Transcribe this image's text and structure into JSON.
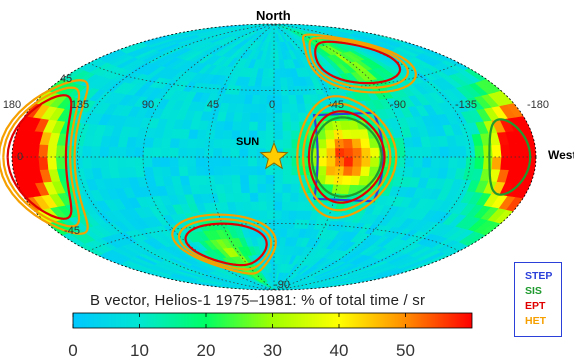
{
  "chart_data": {
    "type": "heatmap",
    "projection": "aitoff",
    "title": "",
    "axis_labels": {
      "top": "North",
      "right": "West"
    },
    "longitude_ticks": [
      "180",
      "135",
      "90",
      "45",
      "0",
      "-45",
      "-90",
      "-135",
      "-180"
    ],
    "longitude_values": [
      180,
      135,
      90,
      45,
      0,
      -45,
      -90,
      -135,
      -180
    ],
    "latitude_ticks": [
      "45",
      "0",
      "-45",
      "-90"
    ],
    "latitude_values": [
      45,
      0,
      -45,
      -90
    ],
    "grid": true,
    "sun_label": "SUN",
    "sun_marker": {
      "lon": 0,
      "lat": 0,
      "color": "#ffcc00"
    },
    "colorbar": {
      "title": "B vector, Helios-1 1975–1981: % of total time / sr",
      "ticks": [
        "0",
        "10",
        "20",
        "30",
        "40",
        "50"
      ],
      "tick_values": [
        0,
        10,
        20,
        30,
        40,
        50
      ],
      "range": [
        0,
        60
      ],
      "colors": [
        "#00c8ff",
        "#00e6d2",
        "#00ff64",
        "#a0ff00",
        "#ffff00",
        "#ff8c00",
        "#ff0000"
      ]
    },
    "hotspots": [
      {
        "lon": 180,
        "lat": 0,
        "value": 48
      },
      {
        "lon": -180,
        "lat": 0,
        "value": 48
      },
      {
        "lon": -50,
        "lat": 0,
        "value": 52
      },
      {
        "lon": -90,
        "lat": 62,
        "value": 22
      },
      {
        "lon": 55,
        "lat": -65,
        "value": 22
      },
      {
        "lon": -170,
        "lat": 0,
        "value": 12
      }
    ],
    "legend": [
      {
        "name": "STEP",
        "color": "#2b3fd9"
      },
      {
        "name": "SIS",
        "color": "#1f9a2e"
      },
      {
        "name": "EPT",
        "color": "#e00000"
      },
      {
        "name": "HET",
        "color": "#f5a000"
      }
    ],
    "instrument_fov": [
      {
        "instrument": "STEP",
        "shape": "rect",
        "lon_range": [
          -30,
          -75
        ],
        "lat_range": [
          -28,
          28
        ],
        "color": "#2b3fd9"
      },
      {
        "instrument": "SIS",
        "shape": "ellipse",
        "lon": -50,
        "lat": 0,
        "rlon": 24,
        "rlat": 26,
        "color": "#1f9a2e"
      },
      {
        "instrument": "SIS",
        "shape": "ellipse",
        "lon": -162,
        "lat": 0,
        "rlon": 14,
        "rlat": 18,
        "color": "#1f9a2e"
      },
      {
        "instrument": "EPT",
        "shape": "ellipse",
        "lon": -50,
        "lat": 0,
        "rlon": 26,
        "rlat": 30,
        "color": "#e00000"
      },
      {
        "instrument": "EPT",
        "shape": "ellipse",
        "lon": 163,
        "lat": 0,
        "rlon": 20,
        "rlat": 30,
        "color": "#e00000"
      },
      {
        "instrument": "EPT",
        "shape": "ellipse",
        "lon": -95,
        "lat": 60,
        "rlon": 42,
        "rlat": 14,
        "color": "#e00000"
      },
      {
        "instrument": "EPT",
        "shape": "ellipse",
        "lon": 50,
        "lat": -58,
        "rlon": 42,
        "rlat": 14,
        "color": "#e00000"
      },
      {
        "instrument": "HET",
        "shape": "ellipse",
        "lon": -50,
        "lat": 0,
        "rlon": 34,
        "rlat": 40,
        "color": "#f5a000"
      },
      {
        "instrument": "HET",
        "shape": "ellipse",
        "lon": -50,
        "lat": 0,
        "rlon": 30,
        "rlat": 35,
        "color": "#f5a000"
      },
      {
        "instrument": "HET",
        "shape": "ellipse",
        "lon": 163,
        "lat": 0,
        "rlon": 26,
        "rlat": 38,
        "color": "#f5a000"
      },
      {
        "instrument": "HET",
        "shape": "ellipse",
        "lon": 163,
        "lat": 0,
        "rlon": 23,
        "rlat": 34,
        "color": "#f5a000"
      },
      {
        "instrument": "HET",
        "shape": "ellipse",
        "lon": -95,
        "lat": 60,
        "rlon": 52,
        "rlat": 20,
        "color": "#f5a000"
      },
      {
        "instrument": "HET",
        "shape": "ellipse",
        "lon": -95,
        "lat": 60,
        "rlon": 47,
        "rlat": 17,
        "color": "#f5a000"
      },
      {
        "instrument": "HET",
        "shape": "ellipse",
        "lon": 50,
        "lat": -58,
        "rlon": 52,
        "rlat": 20,
        "color": "#f5a000"
      },
      {
        "instrument": "HET",
        "shape": "ellipse",
        "lon": 50,
        "lat": -58,
        "rlon": 47,
        "rlat": 17,
        "color": "#f5a000"
      }
    ]
  }
}
